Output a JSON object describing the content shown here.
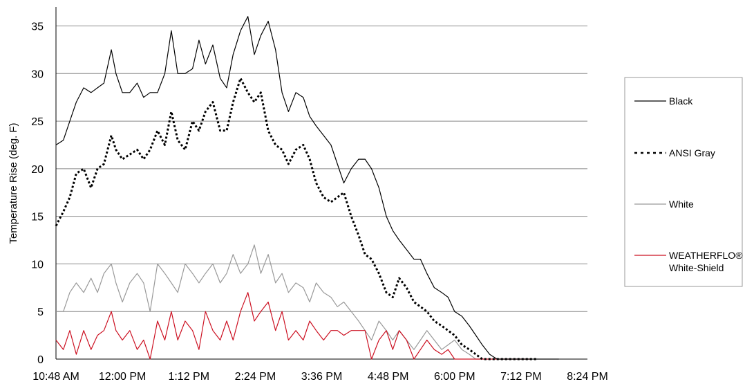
{
  "chart_data": {
    "type": "line",
    "title": "",
    "xlabel": "",
    "ylabel": "Temperature Rise (deg. F)",
    "ylim": [
      0,
      37
    ],
    "yticks": [
      "0",
      "5",
      "10",
      "15",
      "20",
      "25",
      "30",
      "35"
    ],
    "xticks": [
      "10:48 AM",
      "12:00 PM",
      "1:12 PM",
      "2:24 PM",
      "3:36 PM",
      "4:48 PM",
      "6:00 PM",
      "7:12 PM",
      "8:24 PM"
    ],
    "grid": "horizontal",
    "legend_position": "right",
    "x_unit": "minutes after 10:48 AM",
    "series": [
      {
        "name": "Black",
        "color": "#000000",
        "style": "solid",
        "x": [
          0,
          8,
          15,
          22,
          30,
          38,
          45,
          52,
          60,
          65,
          72,
          80,
          88,
          95,
          102,
          110,
          118,
          125,
          132,
          140,
          148,
          155,
          162,
          170,
          178,
          185,
          192,
          200,
          208,
          215,
          222,
          230,
          238,
          245,
          252,
          260,
          268,
          275,
          282,
          290,
          298,
          305,
          312,
          320,
          328,
          335,
          342,
          350,
          358,
          365,
          372,
          380,
          388,
          395,
          402,
          410,
          418,
          425,
          432,
          440,
          448,
          455,
          462,
          470,
          478,
          485,
          492,
          500,
          508,
          515,
          522,
          530,
          538,
          545
        ],
        "y": [
          22.5,
          23,
          25,
          27,
          28.5,
          28,
          28.5,
          29,
          32.5,
          30,
          28,
          28,
          29,
          27.5,
          28,
          28,
          30,
          34.5,
          30,
          30,
          30.5,
          33.5,
          31,
          33,
          29.5,
          28.5,
          32,
          34.5,
          36,
          32,
          34,
          35.5,
          32.5,
          28,
          26,
          28,
          27.5,
          25.5,
          24.5,
          23.5,
          22.5,
          20.5,
          18.5,
          20,
          21,
          21,
          20,
          18,
          15,
          13.5,
          12.5,
          11.5,
          10.5,
          10.5,
          9,
          7.5,
          7,
          6.5,
          5,
          4.5,
          3.5,
          2.5,
          1.5,
          0.5,
          0,
          0,
          0,
          0,
          0,
          0,
          0,
          0,
          0,
          0
        ]
      },
      {
        "name": "ANSI Gray",
        "color": "#000000",
        "style": "dashed",
        "x": [
          0,
          8,
          15,
          22,
          30,
          38,
          45,
          52,
          60,
          65,
          72,
          80,
          88,
          95,
          102,
          110,
          118,
          125,
          132,
          140,
          148,
          155,
          162,
          170,
          178,
          185,
          192,
          200,
          208,
          215,
          222,
          230,
          238,
          245,
          252,
          260,
          268,
          275,
          282,
          290,
          298,
          305,
          312,
          320,
          328,
          335,
          342,
          350,
          358,
          365,
          372,
          380,
          388,
          395,
          402,
          410,
          418,
          425,
          432,
          440,
          448,
          455,
          462,
          470,
          478,
          485,
          492,
          500,
          508,
          515,
          522
        ],
        "y": [
          14,
          15.5,
          17,
          19.5,
          20,
          18,
          20,
          20.5,
          23.5,
          22,
          21,
          21.5,
          22,
          21,
          22,
          24,
          22.5,
          26,
          23,
          22,
          25,
          24,
          26,
          27,
          24,
          24,
          27,
          29.5,
          28,
          27,
          28,
          24,
          22.5,
          22,
          20.5,
          22,
          22.5,
          21,
          18.5,
          17,
          16.5,
          17,
          17.5,
          15,
          13,
          11,
          10.5,
          9,
          7,
          6.5,
          8.5,
          7.5,
          6,
          5.5,
          5,
          4,
          3.5,
          3,
          2.5,
          1.5,
          1,
          0.5,
          0,
          0,
          0,
          0,
          0,
          0,
          0,
          0,
          0
        ]
      },
      {
        "name": "White",
        "color": "#999999",
        "style": "solid",
        "x": [
          0,
          8,
          15,
          22,
          30,
          38,
          45,
          52,
          60,
          65,
          72,
          80,
          88,
          95,
          102,
          110,
          118,
          125,
          132,
          140,
          148,
          155,
          162,
          170,
          178,
          185,
          192,
          200,
          208,
          215,
          222,
          230,
          238,
          245,
          252,
          260,
          268,
          275,
          282,
          290,
          298,
          305,
          312,
          320,
          328,
          335,
          342,
          350,
          358,
          365,
          372,
          380,
          388,
          395,
          402,
          410,
          418,
          425,
          432,
          440,
          448,
          455,
          462,
          470,
          478,
          485,
          492,
          500,
          508,
          515
        ],
        "y": [
          5,
          5,
          7,
          8,
          7,
          8.5,
          7,
          9,
          10,
          8,
          6,
          8,
          9,
          8,
          5,
          10,
          9,
          8,
          7,
          10,
          9,
          8,
          9,
          10,
          8,
          9,
          11,
          9,
          10,
          12,
          9,
          11,
          8,
          9,
          7,
          8,
          7.5,
          6,
          8,
          7,
          6.5,
          5.5,
          6,
          5,
          4,
          3,
          2,
          4,
          3,
          2,
          3,
          2,
          1,
          2,
          3,
          2,
          1,
          1.5,
          2,
          1,
          0.5,
          0,
          0,
          0,
          0,
          0,
          0,
          0,
          0,
          0
        ]
      },
      {
        "name": "WEATHERFLO® White-Shield",
        "color": "#cc1122",
        "style": "solid",
        "x": [
          0,
          8,
          15,
          22,
          30,
          38,
          45,
          52,
          60,
          65,
          72,
          80,
          88,
          95,
          102,
          110,
          118,
          125,
          132,
          140,
          148,
          155,
          162,
          170,
          178,
          185,
          192,
          200,
          208,
          215,
          222,
          230,
          238,
          245,
          252,
          260,
          268,
          275,
          282,
          290,
          298,
          305,
          312,
          320,
          328,
          335,
          342,
          350,
          358,
          365,
          372,
          380,
          388,
          395,
          402,
          410,
          418,
          425,
          432,
          440,
          448,
          455,
          462,
          470,
          478,
          485,
          492,
          500,
          508,
          515
        ],
        "y": [
          2,
          1,
          3,
          0.5,
          3,
          1,
          2.5,
          3,
          5,
          3,
          2,
          3,
          1,
          2,
          0,
          4,
          2,
          5,
          2,
          4,
          3,
          1,
          5,
          3,
          2,
          4,
          2,
          5,
          7,
          4,
          5,
          6,
          3,
          5,
          2,
          3,
          2,
          4,
          3,
          2,
          3,
          3,
          2.5,
          3,
          3,
          3,
          0,
          2,
          3,
          1,
          3,
          2,
          0,
          1,
          2,
          1,
          0.5,
          1,
          0,
          0,
          0,
          0,
          0,
          0,
          0,
          0,
          0,
          0,
          0,
          0
        ]
      }
    ]
  }
}
